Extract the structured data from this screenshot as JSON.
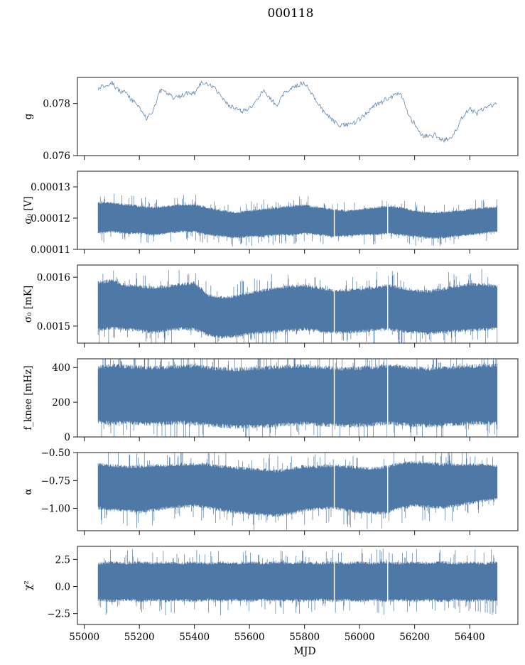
{
  "suptitle": "000118",
  "colors": {
    "series": "#4e79a7",
    "axes": "#000000",
    "background": "#ffffff"
  },
  "chart_data": [
    {
      "type": "line",
      "ylabel": "g",
      "ylim": [
        0.076,
        0.079
      ],
      "yticks": [
        "0.076",
        "0.078"
      ],
      "ytick_values": [
        0.076,
        0.078
      ],
      "x": [
        55050,
        55075,
        55100,
        55125,
        55150,
        55175,
        55200,
        55225,
        55250,
        55275,
        55300,
        55325,
        55350,
        55375,
        55400,
        55425,
        55450,
        55475,
        55500,
        55525,
        55550,
        55575,
        55600,
        55625,
        55650,
        55675,
        55700,
        55725,
        55750,
        55775,
        55800,
        55825,
        55850,
        55875,
        55900,
        55925,
        55950,
        55975,
        56000,
        56025,
        56050,
        56075,
        56100,
        56125,
        56150,
        56175,
        56200,
        56225,
        56250,
        56275,
        56300,
        56325,
        56350,
        56375,
        56400,
        56425,
        56450,
        56475,
        56500
      ],
      "y": [
        0.0786,
        0.0787,
        0.0788,
        0.0785,
        0.0784,
        0.0781,
        0.0779,
        0.0774,
        0.0777,
        0.0785,
        0.0784,
        0.0782,
        0.0783,
        0.0784,
        0.0784,
        0.0788,
        0.0787,
        0.0786,
        0.0782,
        0.0779,
        0.0778,
        0.0777,
        0.0778,
        0.0781,
        0.0785,
        0.0782,
        0.0779,
        0.0784,
        0.0786,
        0.0787,
        0.0788,
        0.0784,
        0.078,
        0.0776,
        0.0774,
        0.0771,
        0.0772,
        0.0772,
        0.0774,
        0.0776,
        0.0779,
        0.078,
        0.0782,
        0.0783,
        0.0784,
        0.0776,
        0.0772,
        0.0768,
        0.0767,
        0.0768,
        0.0766,
        0.0766,
        0.077,
        0.0775,
        0.0778,
        0.0776,
        0.0778,
        0.0779,
        0.078
      ]
    },
    {
      "type": "line",
      "ylabel": "σ₀ [V]",
      "ylim": [
        0.00011,
        0.000135
      ],
      "yticks": [
        "0.00011",
        "0.00012",
        "0.00013"
      ],
      "ytick_values": [
        0.00011,
        0.00012,
        0.00013
      ],
      "band": {
        "x": [
          55050,
          55100,
          55150,
          55200,
          55250,
          55300,
          55350,
          55400,
          55450,
          55500,
          55550,
          55600,
          55650,
          55700,
          55750,
          55800,
          55850,
          55900,
          55950,
          56000,
          56050,
          56100,
          56150,
          56200,
          56250,
          56300,
          56350,
          56400,
          56450,
          56500
        ],
        "lower": [
          0.0001155,
          0.000116,
          0.0001155,
          0.0001155,
          0.000115,
          0.0001155,
          0.000116,
          0.000116,
          0.000115,
          0.0001145,
          0.000114,
          0.0001145,
          0.0001145,
          0.000115,
          0.000115,
          0.0001155,
          0.000115,
          0.0001145,
          0.0001145,
          0.000115,
          0.000115,
          0.0001155,
          0.000115,
          0.0001145,
          0.000114,
          0.000114,
          0.0001145,
          0.000115,
          0.0001155,
          0.000116
        ],
        "upper": [
          0.0001245,
          0.0001245,
          0.000124,
          0.0001235,
          0.000123,
          0.0001235,
          0.000124,
          0.000124,
          0.000123,
          0.000122,
          0.0001215,
          0.000122,
          0.0001225,
          0.000123,
          0.0001235,
          0.0001238,
          0.000123,
          0.0001225,
          0.000122,
          0.0001225,
          0.000123,
          0.0001235,
          0.000123,
          0.000122,
          0.0001215,
          0.0001215,
          0.000122,
          0.0001225,
          0.000123,
          0.0001232
        ]
      }
    },
    {
      "type": "line",
      "ylabel": "σ₀ [mK]",
      "ylim": [
        0.001465,
        0.001625
      ],
      "yticks": [
        "0.0015",
        "0.0016"
      ],
      "ytick_values": [
        0.0015,
        0.0016
      ],
      "band": {
        "x": [
          55050,
          55100,
          55150,
          55200,
          55250,
          55300,
          55350,
          55400,
          55450,
          55500,
          55550,
          55600,
          55650,
          55700,
          55750,
          55800,
          55850,
          55900,
          55950,
          56000,
          56050,
          56100,
          56150,
          56200,
          56250,
          56300,
          56350,
          56400,
          56450,
          56500
        ],
        "lower": [
          0.001495,
          0.0015,
          0.001497,
          0.001495,
          0.00149,
          0.001495,
          0.001498,
          0.001497,
          0.001485,
          0.00148,
          0.001482,
          0.001488,
          0.00149,
          0.001492,
          0.001495,
          0.001497,
          0.001493,
          0.00149,
          0.00149,
          0.001492,
          0.001495,
          0.001497,
          0.001493,
          0.00149,
          0.001488,
          0.00149,
          0.001493,
          0.001495,
          0.001497,
          0.001498
        ],
        "upper": [
          0.001585,
          0.00159,
          0.00158,
          0.001578,
          0.001575,
          0.001578,
          0.001582,
          0.001585,
          0.00156,
          0.001555,
          0.001558,
          0.001565,
          0.00157,
          0.001575,
          0.001578,
          0.00158,
          0.001575,
          0.00157,
          0.00157,
          0.001572,
          0.001575,
          0.00158,
          0.001575,
          0.00157,
          0.001568,
          0.001572,
          0.001578,
          0.001582,
          0.001582,
          0.001578
        ]
      }
    },
    {
      "type": "line",
      "ylabel": "f_knee [mHz]",
      "ylim": [
        0,
        450
      ],
      "yticks": [
        "0",
        "200",
        "400"
      ],
      "ytick_values": [
        0,
        200,
        400
      ],
      "band": {
        "x": [
          55050,
          55100,
          55150,
          55200,
          55250,
          55300,
          55350,
          55400,
          55450,
          55500,
          55550,
          55600,
          55650,
          55700,
          55750,
          55800,
          55850,
          55900,
          55950,
          56000,
          56050,
          56100,
          56150,
          56200,
          56250,
          56300,
          56350,
          56400,
          56450,
          56500
        ],
        "lower": [
          100,
          90,
          95,
          90,
          85,
          90,
          95,
          90,
          80,
          75,
          70,
          72,
          75,
          80,
          85,
          90,
          85,
          80,
          78,
          80,
          85,
          90,
          85,
          80,
          78,
          80,
          85,
          90,
          92,
          95
        ],
        "upper": [
          390,
          400,
          395,
          390,
          385,
          390,
          395,
          400,
          385,
          380,
          375,
          380,
          385,
          390,
          395,
          398,
          390,
          385,
          380,
          385,
          390,
          395,
          390,
          385,
          380,
          385,
          390,
          395,
          398,
          400
        ]
      }
    },
    {
      "type": "line",
      "ylabel": "α",
      "ylim": [
        -1.2,
        -0.5
      ],
      "yticks": [
        "−1.00",
        "−0.75",
        "−0.50"
      ],
      "ytick_values": [
        -1.0,
        -0.75,
        -0.5
      ],
      "band": {
        "x": [
          55050,
          55100,
          55150,
          55200,
          55250,
          55300,
          55350,
          55400,
          55450,
          55500,
          55550,
          55600,
          55650,
          55700,
          55750,
          55800,
          55850,
          55900,
          55950,
          56000,
          56050,
          56100,
          56150,
          56200,
          56250,
          56300,
          56350,
          56400,
          56450,
          56500
        ],
        "lower": [
          -0.98,
          -1.0,
          -1.0,
          -1.02,
          -1.0,
          -0.98,
          -0.97,
          -0.96,
          -0.98,
          -1.0,
          -1.02,
          -1.03,
          -1.04,
          -1.05,
          -1.03,
          -1.0,
          -0.99,
          -0.98,
          -1.0,
          -1.02,
          -1.03,
          -1.02,
          -0.98,
          -0.96,
          -0.97,
          -0.98,
          -0.96,
          -0.94,
          -0.92,
          -0.9
        ],
        "upper": [
          -0.62,
          -0.63,
          -0.64,
          -0.64,
          -0.63,
          -0.63,
          -0.62,
          -0.62,
          -0.62,
          -0.64,
          -0.65,
          -0.66,
          -0.67,
          -0.68,
          -0.66,
          -0.64,
          -0.64,
          -0.63,
          -0.64,
          -0.65,
          -0.66,
          -0.64,
          -0.61,
          -0.6,
          -0.61,
          -0.62,
          -0.62,
          -0.62,
          -0.62,
          -0.63
        ]
      }
    },
    {
      "type": "line",
      "ylabel": "χ²",
      "ylim": [
        -3.5,
        3.7
      ],
      "yticks": [
        "−2.5",
        "0.0",
        "2.5"
      ],
      "ytick_values": [
        -2.5,
        0.0,
        2.5
      ],
      "xlabel": "MJD",
      "xticks": [
        "55000",
        "55200",
        "55400",
        "55600",
        "55800",
        "56000",
        "56200",
        "56400"
      ],
      "band": {
        "x": [
          55050,
          55100,
          55150,
          55200,
          55250,
          55300,
          55350,
          55400,
          55450,
          55500,
          55550,
          55600,
          55650,
          55700,
          55750,
          55800,
          55850,
          55900,
          55950,
          56000,
          56050,
          56100,
          56150,
          56200,
          56250,
          56300,
          56350,
          56400,
          56450,
          56500
        ],
        "lower": [
          -1.1,
          -1.2,
          -1.1,
          -1.2,
          -1.1,
          -1.2,
          -1.1,
          -1.2,
          -1.1,
          -1.2,
          -1.1,
          -1.2,
          -1.1,
          -1.2,
          -1.1,
          -1.2,
          -1.1,
          -1.2,
          -1.1,
          -1.2,
          -1.1,
          -1.2,
          -1.1,
          -1.2,
          -1.1,
          -1.2,
          -1.1,
          -1.2,
          -1.1,
          -1.2
        ],
        "upper": [
          2.0,
          2.1,
          2.0,
          2.1,
          2.0,
          2.1,
          2.0,
          2.1,
          2.0,
          2.1,
          2.0,
          2.1,
          2.0,
          2.1,
          2.0,
          2.1,
          2.0,
          2.1,
          2.0,
          2.1,
          2.0,
          2.1,
          2.0,
          2.1,
          2.0,
          2.1,
          2.0,
          2.1,
          2.0,
          2.1
        ]
      }
    }
  ],
  "xlim": [
    54975,
    56575
  ],
  "xtick_values": [
    55000,
    55200,
    55400,
    55600,
    55800,
    56000,
    56200,
    56400
  ],
  "gaps_mjd": [
    55908,
    56102
  ]
}
